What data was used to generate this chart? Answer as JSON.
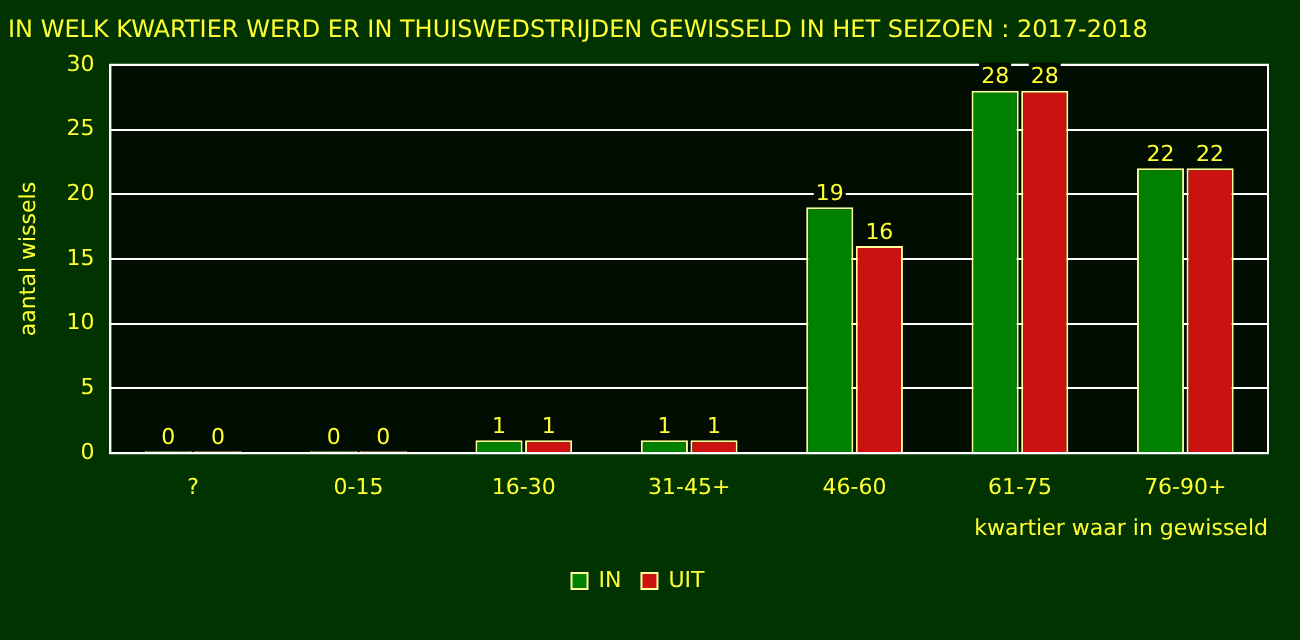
{
  "chart_data": {
    "type": "bar",
    "title": "IN WELK KWARTIER WERD ER IN THUISWEDSTRIJDEN GEWISSELD IN HET SEIZOEN : 2017-2018",
    "xlabel": "kwartier waar in gewisseld",
    "ylabel": "aantal wissels",
    "categories": [
      "?",
      "0-15",
      "16-30",
      "31-45+",
      "46-60",
      "61-75",
      "76-90+"
    ],
    "series": [
      {
        "name": "IN",
        "color": "#008000",
        "values": [
          0,
          0,
          1,
          1,
          19,
          28,
          22
        ]
      },
      {
        "name": "UIT",
        "color": "#cc1111",
        "values": [
          0,
          0,
          1,
          1,
          16,
          28,
          22
        ]
      }
    ],
    "ylim": [
      0,
      30
    ],
    "yticks": [
      0,
      5,
      10,
      15,
      20,
      25,
      30
    ],
    "grid": "y",
    "legend": "bottom",
    "data_labels": true
  }
}
